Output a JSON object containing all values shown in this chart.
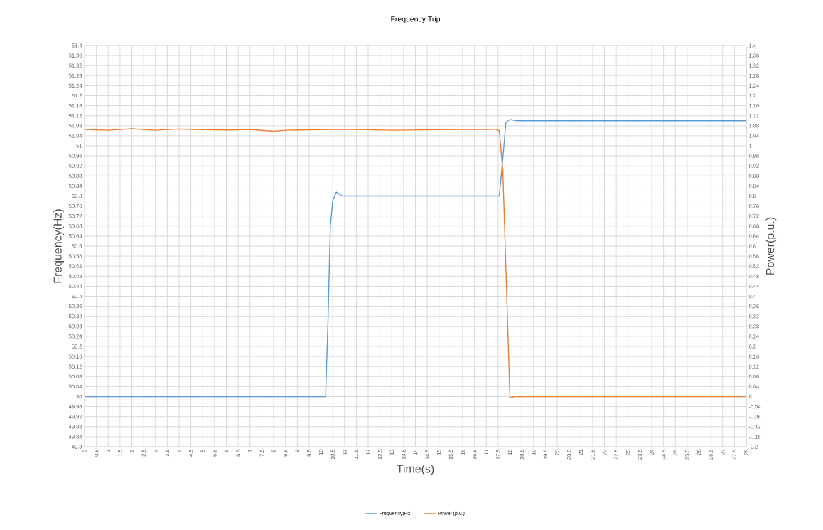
{
  "chart_data": {
    "type": "line",
    "title": "Frequency Trip",
    "xlabel": "Time(s)",
    "ylabel": "Frequency(Hz)",
    "y2label": "Power(p.u.)",
    "xlim": [
      0,
      28
    ],
    "xticks": [
      0,
      0.5,
      1,
      1.5,
      2,
      2.5,
      3,
      3.5,
      4,
      4.5,
      5,
      5.5,
      6,
      6.5,
      7,
      7.5,
      8,
      8.5,
      9,
      9.5,
      10,
      10.5,
      11,
      11.5,
      12,
      12.5,
      13,
      13.5,
      14,
      14.5,
      15,
      15.5,
      16,
      16.5,
      17,
      17.5,
      18,
      18.5,
      19,
      19.5,
      20,
      20.5,
      21,
      21.5,
      22,
      22.5,
      23,
      23.5,
      24,
      24.5,
      25,
      25.5,
      26,
      26.5,
      27,
      27.5,
      28
    ],
    "ylim": [
      49.8,
      51.4
    ],
    "yticks": [
      49.8,
      49.84,
      49.88,
      49.92,
      49.96,
      50,
      50.04,
      50.08,
      50.12,
      50.16,
      50.2,
      50.24,
      50.28,
      50.32,
      50.36,
      50.4,
      50.44,
      50.48,
      50.52,
      50.56,
      50.6,
      50.64,
      50.68,
      50.72,
      50.76,
      50.8,
      50.84,
      50.88,
      50.92,
      50.96,
      51,
      51.04,
      51.08,
      51.12,
      51.16,
      51.2,
      51.24,
      51.28,
      51.32,
      51.36,
      51.4
    ],
    "y2lim": [
      -0.2,
      1.4
    ],
    "y2ticks": [
      -0.2,
      -0.16,
      -0.12,
      -0.08,
      -0.04,
      0,
      0.04,
      0.08,
      0.12,
      0.16,
      0.2,
      0.24,
      0.28,
      0.32,
      0.36,
      0.4,
      0.44,
      0.48,
      0.52,
      0.56,
      0.6,
      0.64,
      0.68,
      0.72,
      0.76,
      0.8,
      0.84,
      0.88,
      0.92,
      0.96,
      1,
      1.04,
      1.08,
      1.12,
      1.16,
      1.2,
      1.24,
      1.28,
      1.32,
      1.36,
      1.4
    ],
    "grid": true,
    "legend": "bottom",
    "marker": "none",
    "line_style": "solid",
    "series": [
      {
        "name": "Frequency(Hz)",
        "color": "#5b9bd5",
        "x": [
          0,
          2,
          4,
          6,
          8,
          10,
          10.2,
          10.3,
          10.4,
          10.5,
          10.65,
          10.9,
          12,
          14,
          15,
          16,
          17,
          17.55,
          17.7,
          17.83,
          18.0,
          18.3,
          20,
          22,
          24,
          26,
          28
        ],
        "values": [
          50,
          50,
          50,
          50,
          50,
          50,
          50,
          50.3,
          50.68,
          50.78,
          50.815,
          50.8,
          50.8,
          50.8,
          50.8,
          50.8,
          50.8,
          50.8,
          50.95,
          51.095,
          51.105,
          51.1,
          51.1,
          51.1,
          51.1,
          51.1,
          51.1
        ]
      },
      {
        "name": "Power (p.u.)",
        "color": "#ed7d31",
        "axis": "y2",
        "x": [
          0,
          1,
          2,
          3,
          4,
          5,
          6,
          7,
          8,
          8.5,
          9,
          10,
          11,
          12,
          13,
          14,
          15,
          16,
          17,
          17.4,
          17.55,
          17.7,
          17.85,
          18.0,
          18.2,
          20,
          22,
          24,
          26,
          28
        ],
        "values": [
          1.065,
          1.062,
          1.068,
          1.062,
          1.067,
          1.064,
          1.063,
          1.065,
          1.058,
          1.062,
          1.063,
          1.064,
          1.066,
          1.064,
          1.062,
          1.063,
          1.064,
          1.065,
          1.065,
          1.066,
          1.06,
          0.9,
          0.45,
          -0.005,
          0,
          0,
          0,
          0,
          0,
          0
        ]
      }
    ]
  }
}
